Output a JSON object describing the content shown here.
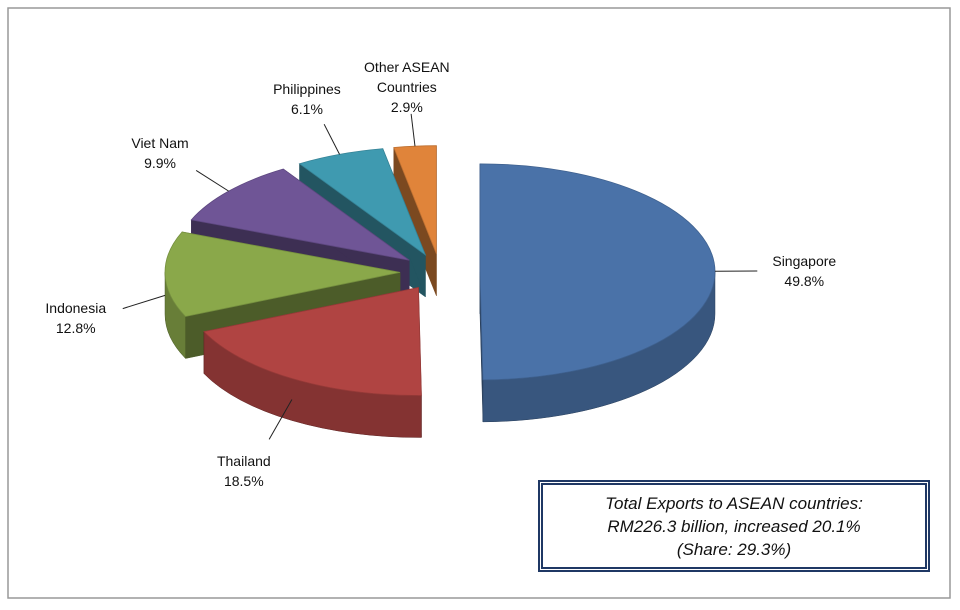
{
  "chart_data": {
    "type": "pie3d",
    "categories": [
      "Singapore",
      "Thailand",
      "Indonesia",
      "Viet Nam",
      "Philippines",
      "Other ASEAN Countries"
    ],
    "values": [
      49.8,
      18.5,
      12.8,
      9.9,
      6.1,
      2.9
    ],
    "value_labels": [
      "49.8%",
      "18.5%",
      "12.8%",
      "9.9%",
      "6.1%",
      "2.9%"
    ],
    "colors": [
      "#4a72a8",
      "#b04442",
      "#8aa84a",
      "#6f5596",
      "#3f9ab0",
      "#e0843a"
    ],
    "annotation": [
      "Total Exports to ASEAN countries:",
      "RM226.3 billion, increased 20.1%",
      "(Share: 29.3%)"
    ]
  }
}
